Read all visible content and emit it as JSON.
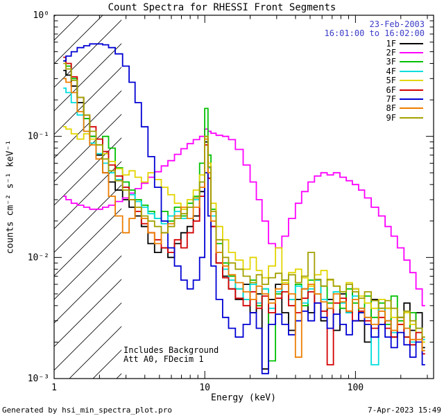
{
  "footer": {
    "left": "Generated by hsi_min_spectra_plot.pro",
    "right": "7-Apr-2023 15:49"
  },
  "legend": {
    "date": "23-Feb-2003",
    "time_range": "16:01:00 to 16:02:00",
    "date_color": "#3c3cc8",
    "label_color": "#000000",
    "position": "top-right-inside"
  },
  "chart_data": {
    "type": "line",
    "style": "histogram-step",
    "title": "Count Spectra for RHESSI Front Segments",
    "xlabel": "Energy (keV)",
    "ylabel": "counts cm⁻² s⁻¹ keV⁻¹",
    "xscale": "log",
    "yscale": "log",
    "xlim": [
      1,
      330
    ],
    "ylim": [
      0.001,
      1
    ],
    "grid": false,
    "x_ticks": [
      {
        "value": 1,
        "label": "1"
      },
      {
        "value": 10,
        "label": "10"
      },
      {
        "value": 100,
        "label": "100"
      }
    ],
    "y_ticks": [
      {
        "value": 0.001,
        "label": "10⁻³"
      },
      {
        "value": 0.01,
        "label": "10⁻²"
      },
      {
        "value": 0.1,
        "label": "10⁻¹"
      },
      {
        "value": 1,
        "label": "10⁰"
      }
    ],
    "hatched_region_x": [
      1,
      2.8
    ],
    "annotations": [
      "Includes Background",
      "Att A0, FDecim 1"
    ],
    "x": [
      1.15,
      1.25,
      1.35,
      1.5,
      1.65,
      1.8,
      2.0,
      2.2,
      2.4,
      2.7,
      3.0,
      3.3,
      3.6,
      4.0,
      4.4,
      4.9,
      5.4,
      6.0,
      6.6,
      7.3,
      8.0,
      8.8,
      9.7,
      10.3,
      10.7,
      11.3,
      12.5,
      13.8,
      15,
      17,
      19,
      21,
      23,
      25,
      28,
      31,
      34,
      38,
      42,
      46,
      51,
      56,
      62,
      68,
      75,
      83,
      91,
      100,
      110,
      120,
      135,
      150,
      165,
      180,
      200,
      220,
      240,
      265,
      290
    ],
    "series": [
      {
        "name": "1F",
        "color": "#000000",
        "values": [
          0.35,
          0.32,
          0.26,
          0.19,
          0.14,
          0.1,
          0.07,
          0.05,
          0.042,
          0.036,
          0.03,
          0.026,
          0.022,
          0.018,
          0.013,
          0.011,
          0.012,
          0.01,
          0.013,
          0.016,
          0.018,
          0.022,
          0.035,
          0.09,
          0.045,
          0.018,
          0.009,
          0.007,
          0.0055,
          0.0045,
          0.006,
          0.0035,
          0.005,
          0.0012,
          0.0045,
          0.006,
          0.0035,
          0.0025,
          0.0045,
          0.0055,
          0.0035,
          0.0065,
          0.003,
          0.0045,
          0.0025,
          0.005,
          0.0035,
          0.0055,
          0.003,
          0.002,
          0.0045,
          0.0028,
          0.0038,
          0.0022,
          0.0032,
          0.0042,
          0.0025,
          0.0035,
          0.0018
        ]
      },
      {
        "name": "2F",
        "color": "#ff00ff",
        "values": [
          0.032,
          0.03,
          0.028,
          0.027,
          0.026,
          0.025,
          0.025,
          0.026,
          0.027,
          0.029,
          0.031,
          0.034,
          0.037,
          0.041,
          0.046,
          0.051,
          0.057,
          0.063,
          0.071,
          0.079,
          0.087,
          0.094,
          0.1,
          0.115,
          0.11,
          0.106,
          0.102,
          0.1,
          0.094,
          0.078,
          0.058,
          0.042,
          0.03,
          0.02,
          0.013,
          0.012,
          0.015,
          0.021,
          0.028,
          0.035,
          0.042,
          0.047,
          0.05,
          0.048,
          0.05,
          0.046,
          0.043,
          0.04,
          0.036,
          0.031,
          0.026,
          0.022,
          0.018,
          0.015,
          0.012,
          0.0095,
          0.0075,
          0.0055,
          0.004
        ]
      },
      {
        "name": "3F",
        "color": "#00c000",
        "values": [
          0.42,
          0.38,
          0.3,
          0.21,
          0.14,
          0.1,
          0.085,
          0.1,
          0.08,
          0.055,
          0.042,
          0.036,
          0.03,
          0.027,
          0.024,
          0.021,
          0.024,
          0.02,
          0.026,
          0.022,
          0.028,
          0.032,
          0.06,
          0.17,
          0.07,
          0.025,
          0.013,
          0.009,
          0.007,
          0.0055,
          0.0045,
          0.0065,
          0.004,
          0.0055,
          0.0014,
          0.005,
          0.0065,
          0.0045,
          0.006,
          0.004,
          0.0065,
          0.005,
          0.0058,
          0.0042,
          0.0052,
          0.0038,
          0.0055,
          0.0042,
          0.0035,
          0.0048,
          0.0032,
          0.0042,
          0.0028,
          0.0048,
          0.003,
          0.0022,
          0.0035,
          0.0026,
          0.002
        ]
      },
      {
        "name": "4F",
        "color": "#00dede",
        "values": [
          0.25,
          0.23,
          0.19,
          0.15,
          0.11,
          0.088,
          0.072,
          0.06,
          0.05,
          0.044,
          0.038,
          0.033,
          0.029,
          0.026,
          0.023,
          0.021,
          0.019,
          0.022,
          0.024,
          0.021,
          0.026,
          0.03,
          0.042,
          0.1,
          0.055,
          0.022,
          0.011,
          0.008,
          0.0065,
          0.0055,
          0.0045,
          0.006,
          0.0042,
          0.0055,
          0.0038,
          0.0052,
          0.006,
          0.0045,
          0.0058,
          0.0042,
          0.0055,
          0.0065,
          0.0045,
          0.0038,
          0.0052,
          0.0042,
          0.0035,
          0.0048,
          0.0038,
          0.0032,
          0.0013,
          0.0038,
          0.003,
          0.0024,
          0.0032,
          0.0026,
          0.002,
          0.0026,
          0.0021
        ]
      },
      {
        "name": "5F",
        "color": "#e2d500",
        "values": [
          0.12,
          0.115,
          0.105,
          0.095,
          0.105,
          0.095,
          0.085,
          0.072,
          0.062,
          0.054,
          0.048,
          0.052,
          0.046,
          0.042,
          0.05,
          0.044,
          0.038,
          0.033,
          0.028,
          0.025,
          0.03,
          0.036,
          0.048,
          0.1,
          0.06,
          0.028,
          0.018,
          0.014,
          0.011,
          0.0095,
          0.008,
          0.01,
          0.0078,
          0.0068,
          0.0085,
          0.012,
          0.0062,
          0.0075,
          0.008,
          0.0068,
          0.0058,
          0.0072,
          0.0078,
          0.0065,
          0.0058,
          0.0052,
          0.0062,
          0.0055,
          0.0048,
          0.0042,
          0.0038,
          0.0045,
          0.0038,
          0.0032,
          0.0028,
          0.0035,
          0.0028,
          0.0024,
          0.002
        ]
      },
      {
        "name": "6F",
        "color": "#d40000",
        "values": [
          0.45,
          0.4,
          0.31,
          0.21,
          0.15,
          0.12,
          0.095,
          0.075,
          0.058,
          0.047,
          0.038,
          0.03,
          0.024,
          0.019,
          0.016,
          0.014,
          0.012,
          0.011,
          0.014,
          0.012,
          0.016,
          0.02,
          0.032,
          0.085,
          0.045,
          0.018,
          0.009,
          0.0068,
          0.0055,
          0.0046,
          0.004,
          0.0052,
          0.0038,
          0.0048,
          0.0035,
          0.0046,
          0.0052,
          0.004,
          0.0035,
          0.0046,
          0.0052,
          0.0042,
          0.0036,
          0.0013,
          0.0042,
          0.0046,
          0.0036,
          0.003,
          0.0036,
          0.003,
          0.0026,
          0.0032,
          0.0026,
          0.0022,
          0.0028,
          0.0022,
          0.0019,
          0.0024,
          0.0016
        ]
      },
      {
        "name": "7F",
        "color": "#0000d4",
        "values": [
          0.42,
          0.46,
          0.5,
          0.54,
          0.56,
          0.58,
          0.58,
          0.57,
          0.54,
          0.48,
          0.38,
          0.28,
          0.19,
          0.12,
          0.068,
          0.038,
          0.02,
          0.012,
          0.0085,
          0.0065,
          0.0055,
          0.0065,
          0.01,
          0.05,
          0.022,
          0.0085,
          0.0045,
          0.0032,
          0.0026,
          0.0022,
          0.0028,
          0.0035,
          0.0026,
          0.0011,
          0.0028,
          0.0034,
          0.0028,
          0.0023,
          0.003,
          0.0036,
          0.003,
          0.0042,
          0.0032,
          0.0026,
          0.0034,
          0.0028,
          0.0023,
          0.003,
          0.0035,
          0.0028,
          0.0022,
          0.0028,
          0.0022,
          0.0018,
          0.0024,
          0.0019,
          0.0015,
          0.002,
          0.0013
        ]
      },
      {
        "name": "8F",
        "color": "#ed7d00",
        "values": [
          0.3,
          0.28,
          0.23,
          0.16,
          0.11,
          0.085,
          0.065,
          0.05,
          0.032,
          0.022,
          0.016,
          0.021,
          0.026,
          0.021,
          0.016,
          0.013,
          0.016,
          0.019,
          0.022,
          0.026,
          0.021,
          0.026,
          0.038,
          0.095,
          0.05,
          0.02,
          0.011,
          0.0085,
          0.0072,
          0.0062,
          0.0052,
          0.0045,
          0.0058,
          0.005,
          0.0042,
          0.0055,
          0.006,
          0.005,
          0.0015,
          0.0055,
          0.006,
          0.005,
          0.0043,
          0.0038,
          0.005,
          0.0043,
          0.0036,
          0.0045,
          0.0038,
          0.0032,
          0.0028,
          0.0036,
          0.003,
          0.0025,
          0.0032,
          0.0026,
          0.0021,
          0.0021,
          0.0017
        ]
      },
      {
        "name": "9F",
        "color": "#a3a000",
        "values": [
          0.4,
          0.36,
          0.29,
          0.21,
          0.15,
          0.11,
          0.085,
          0.065,
          0.052,
          0.043,
          0.036,
          0.03,
          0.026,
          0.022,
          0.02,
          0.018,
          0.016,
          0.018,
          0.021,
          0.023,
          0.026,
          0.031,
          0.042,
          0.1,
          0.056,
          0.024,
          0.014,
          0.01,
          0.009,
          0.008,
          0.007,
          0.0062,
          0.0072,
          0.006,
          0.0068,
          0.0074,
          0.0065,
          0.0072,
          0.0062,
          0.007,
          0.011,
          0.0066,
          0.0058,
          0.0066,
          0.0058,
          0.0052,
          0.006,
          0.0052,
          0.0046,
          0.0052,
          0.0044,
          0.0038,
          0.0044,
          0.0038,
          0.0032,
          0.0036,
          0.003,
          0.0026,
          0.0022
        ]
      }
    ]
  }
}
